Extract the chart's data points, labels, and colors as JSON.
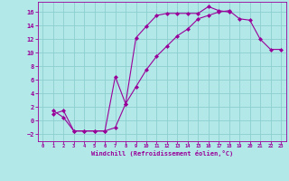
{
  "xlabel": "Windchill (Refroidissement éolien,°C)",
  "bg_color": "#b2e8e8",
  "grid_color": "#8ecece",
  "line_color": "#990099",
  "xlim": [
    -0.5,
    23.5
  ],
  "ylim": [
    -3.0,
    17.5
  ],
  "xticks": [
    0,
    1,
    2,
    3,
    4,
    5,
    6,
    7,
    8,
    9,
    10,
    11,
    12,
    13,
    14,
    15,
    16,
    17,
    18,
    19,
    20,
    21,
    22,
    23
  ],
  "yticks": [
    -2,
    0,
    2,
    4,
    6,
    8,
    10,
    12,
    14,
    16
  ],
  "curve1_x": [
    1,
    2,
    3,
    4,
    5,
    6,
    7,
    8,
    9,
    10,
    11,
    12,
    13,
    14,
    15,
    16,
    17,
    18
  ],
  "curve1_y": [
    1.0,
    1.5,
    -1.5,
    -1.5,
    -1.5,
    -1.5,
    6.5,
    2.5,
    12.2,
    13.9,
    15.5,
    15.8,
    15.8,
    15.8,
    15.8,
    16.8,
    16.2,
    16.0
  ],
  "curve2_x": [
    1,
    2,
    3,
    4,
    5,
    6,
    7,
    8,
    9,
    10,
    11,
    12,
    13,
    14,
    15,
    16,
    17,
    18,
    19,
    20,
    21,
    22,
    23
  ],
  "curve2_y": [
    1.5,
    0.5,
    -1.5,
    -1.5,
    -1.5,
    -1.5,
    -1.0,
    2.5,
    5.0,
    7.5,
    9.5,
    11.0,
    12.5,
    13.5,
    15.0,
    15.5,
    16.0,
    16.2,
    15.0,
    14.8,
    12.0,
    10.5,
    10.5
  ]
}
